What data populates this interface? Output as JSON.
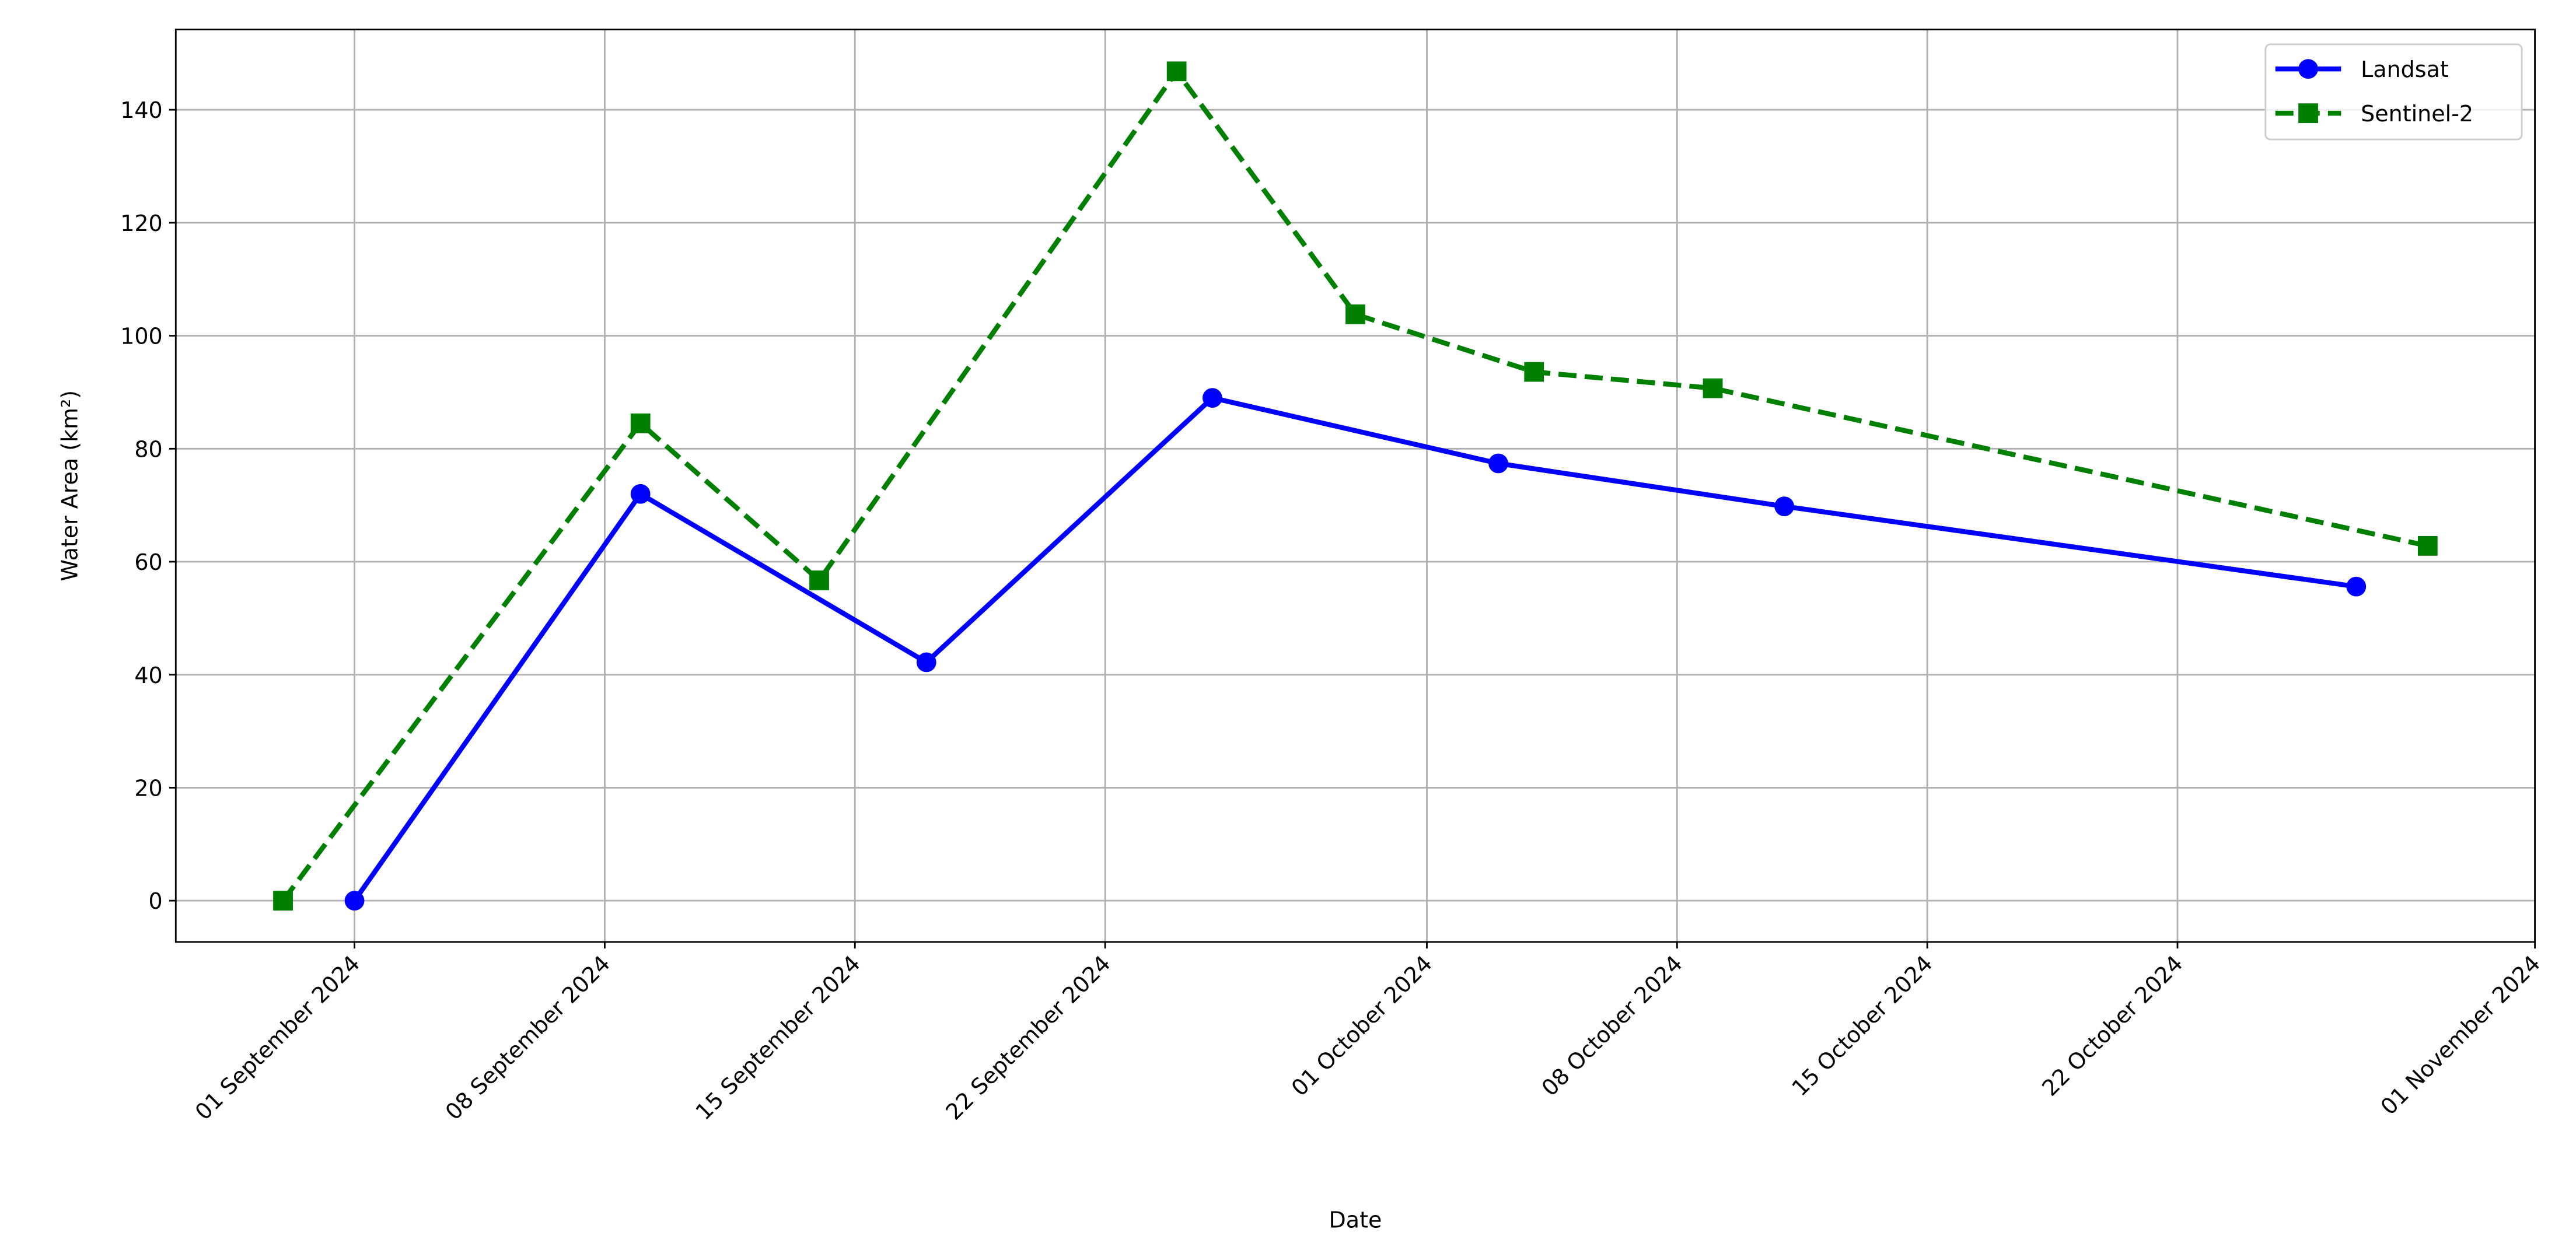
{
  "chart_data": {
    "type": "line",
    "x_label": "Date",
    "y_label": "Water Area (km²)",
    "series": [
      {
        "name": "Landsat",
        "color": "#0000ff",
        "marker": "circle",
        "line_style": "solid",
        "x": [
          "2024-09-01",
          "2024-09-09",
          "2024-09-17",
          "2024-09-25",
          "2024-10-03",
          "2024-10-11",
          "2024-10-27"
        ],
        "values": [
          0,
          72,
          42.2,
          89,
          77.4,
          69.8,
          55.6
        ]
      },
      {
        "name": "Sentinel-2",
        "color": "#008000",
        "marker": "square",
        "line_style": "dashed",
        "x": [
          "2024-08-30",
          "2024-09-09",
          "2024-09-14",
          "2024-09-24",
          "2024-09-29",
          "2024-10-04",
          "2024-10-09",
          "2024-10-29"
        ],
        "values": [
          0,
          84.5,
          56.7,
          146.8,
          103.8,
          93.6,
          90.7,
          62.8
        ]
      }
    ],
    "xlim": [
      "2024-08-27",
      "2024-11-01"
    ],
    "xticks": [
      {
        "value": "2024-09-01",
        "label": "01 September 2024"
      },
      {
        "value": "2024-09-08",
        "label": "08 September 2024"
      },
      {
        "value": "2024-09-15",
        "label": "15 September 2024"
      },
      {
        "value": "2024-09-22",
        "label": "22 September 2024"
      },
      {
        "value": "2024-10-01",
        "label": "01 October 2024"
      },
      {
        "value": "2024-10-08",
        "label": "08 October 2024"
      },
      {
        "value": "2024-10-15",
        "label": "15 October 2024"
      },
      {
        "value": "2024-10-22",
        "label": "22 October 2024"
      },
      {
        "value": "2024-11-01",
        "label": "01 November 2024"
      }
    ],
    "ylim": [
      -7.3,
      154.2
    ],
    "yticks": [
      0,
      20,
      40,
      60,
      80,
      100,
      120,
      140
    ],
    "grid": true,
    "legend_position": "upper-right"
  }
}
